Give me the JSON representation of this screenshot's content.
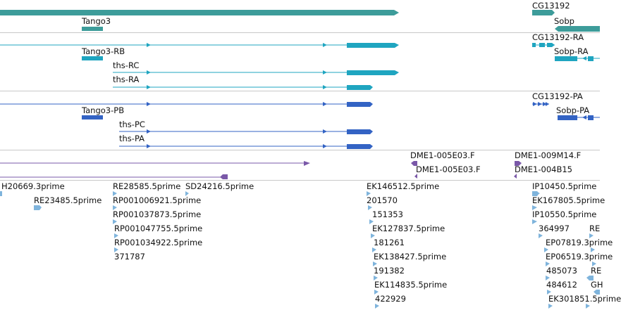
{
  "colors": {
    "gene": "#3d9c9a",
    "transcript_rb": "#1fa5c0",
    "protein": "#3363c4",
    "cdna": "#7a58a8",
    "est": "#7fb4dc",
    "separator": "#c8c8c8"
  },
  "genes": {
    "labels": [
      "Tango3",
      "CG13192",
      "Sobp"
    ]
  },
  "transcripts": {
    "labels": [
      "Tango3-RB",
      "ths-RC",
      "ths-RA",
      "CG13192-RA",
      "Sobp-RA"
    ]
  },
  "proteins": {
    "labels": [
      "Tango3-PB",
      "ths-PC",
      "ths-PA",
      "CG13192-PA",
      "Sobp-PA"
    ]
  },
  "cdna": {
    "labels": [
      "DME1-005E03.F",
      "DME1-005E03.F",
      "DME1-009M14.F",
      "DME1-004B15"
    ]
  },
  "ests": {
    "labels": [
      "H20669.3prime",
      "RE23485.5prime",
      "RE28585.5prime",
      "SD24216.5prime",
      "RP001006921.5prime",
      "RP001037873.5prime",
      "RP001047755.5prime",
      "RP001034922.5prime",
      "371787",
      "EK146512.5prime",
      "201570",
      "151353",
      "EK127837.5prime",
      "181261",
      "EK138427.5prime",
      "191382",
      "EK114835.5prime",
      "422929",
      "IP10450.5prime",
      "EK167805.5prime",
      "IP10550.5prime",
      "364997",
      "EP07819.3prime",
      "EP06519.3prime",
      "485073",
      "484612",
      "EK301851.5prime",
      "RE",
      "RE",
      "GH"
    ]
  }
}
